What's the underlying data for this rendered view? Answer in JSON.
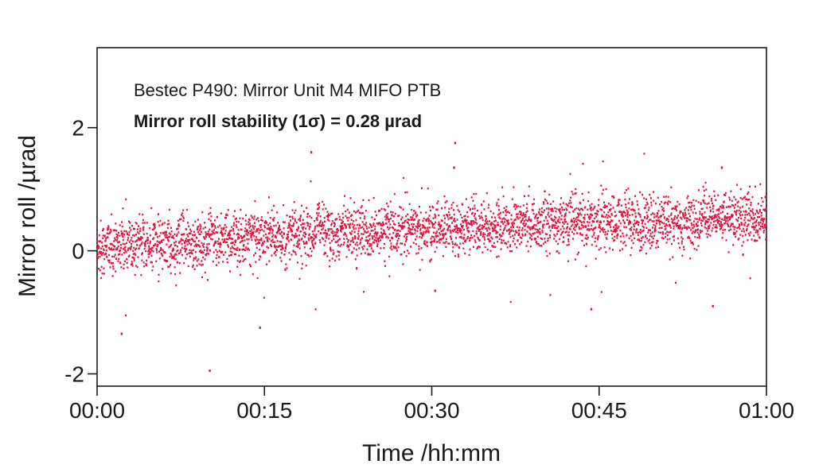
{
  "chart_data": {
    "type": "scatter",
    "title": "",
    "xlabel": "Time /hh:mm",
    "ylabel": "Mirror roll /µrad",
    "xlim": [
      "00:00",
      "01:00"
    ],
    "ylim": [
      -2.2,
      3.3
    ],
    "x_ticks": [
      "00:00",
      "00:15",
      "00:30",
      "00:45",
      "01:00"
    ],
    "y_ticks": [
      -2,
      0,
      2
    ],
    "grid": false,
    "annotations": [
      "Bestec P490: Mirror Unit M4 MIFO PTB",
      "Mirror roll stability (1σ) = 0.28 µrad"
    ],
    "series": [
      {
        "color": "#e0143c",
        "x_unit": "minutes",
        "trend": [
          {
            "x": 0,
            "y": 0.05
          },
          {
            "x": 10,
            "y": 0.15
          },
          {
            "x": 15,
            "y": 0.25
          },
          {
            "x": 20,
            "y": 0.3
          },
          {
            "x": 30,
            "y": 0.35
          },
          {
            "x": 45,
            "y": 0.45
          },
          {
            "x": 60,
            "y": 0.55
          }
        ],
        "sigma": 0.28,
        "n_points": 3600,
        "outliers": [
          {
            "x": 2.2,
            "y": -1.35
          },
          {
            "x": 10.1,
            "y": -1.95
          },
          {
            "x": 14.6,
            "y": -1.25
          },
          {
            "x": 19.2,
            "y": 1.6
          },
          {
            "x": 32.1,
            "y": 1.75
          },
          {
            "x": 32.0,
            "y": 1.35
          },
          {
            "x": 44.3,
            "y": -0.95
          },
          {
            "x": 55.2,
            "y": -0.9
          },
          {
            "x": 56.0,
            "y": 1.35
          },
          {
            "x": 30.3,
            "y": -0.65
          }
        ]
      }
    ]
  }
}
